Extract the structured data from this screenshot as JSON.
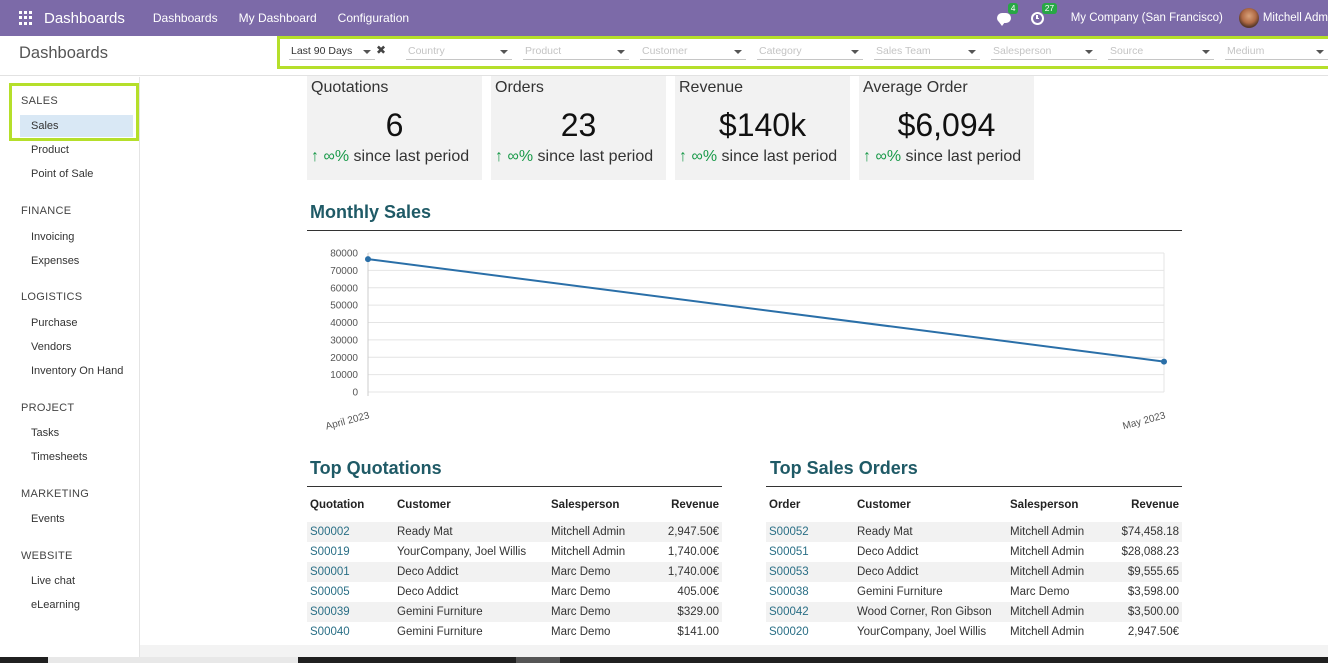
{
  "topbar": {
    "brand": "Dashboards",
    "menu": [
      "Dashboards",
      "My Dashboard",
      "Configuration"
    ],
    "messages_count": "4",
    "activities_count": "27",
    "company": "My Company (San Francisco)",
    "user": "Mitchell Adm"
  },
  "control_panel": {
    "title": "Dashboards",
    "filters": [
      {
        "value": "Last 90 Days",
        "placeholder": ""
      },
      {
        "value": "",
        "placeholder": "Country"
      },
      {
        "value": "",
        "placeholder": "Product"
      },
      {
        "value": "",
        "placeholder": "Customer"
      },
      {
        "value": "",
        "placeholder": "Category"
      },
      {
        "value": "",
        "placeholder": "Sales Team"
      },
      {
        "value": "",
        "placeholder": "Salesperson"
      },
      {
        "value": "",
        "placeholder": "Source"
      },
      {
        "value": "",
        "placeholder": "Medium"
      }
    ]
  },
  "sidebar": {
    "sections": [
      {
        "title": "SALES",
        "items": [
          "Sales",
          "Product",
          "Point of Sale"
        ]
      },
      {
        "title": "FINANCE",
        "items": [
          "Invoicing",
          "Expenses"
        ]
      },
      {
        "title": "LOGISTICS",
        "items": [
          "Purchase",
          "Vendors",
          "Inventory On Hand"
        ]
      },
      {
        "title": "PROJECT",
        "items": [
          "Tasks",
          "Timesheets"
        ]
      },
      {
        "title": "MARKETING",
        "items": [
          "Events"
        ]
      },
      {
        "title": "WEBSITE",
        "items": [
          "Live chat",
          "eLearning"
        ]
      }
    ]
  },
  "kpis": [
    {
      "label": "Quotations",
      "value": "6",
      "trend_pct": "∞%",
      "trend_text": " since last period"
    },
    {
      "label": "Orders",
      "value": "23",
      "trend_pct": "∞%",
      "trend_text": " since last period"
    },
    {
      "label": "Revenue",
      "value": "$140k",
      "trend_pct": "∞%",
      "trend_text": " since last period"
    },
    {
      "label": "Average Order",
      "value": "$6,094",
      "trend_pct": "∞%",
      "trend_text": " since last period"
    }
  ],
  "monthly_sales": {
    "title": "Monthly Sales"
  },
  "chart_data": {
    "type": "line",
    "title": "Monthly Sales",
    "x": [
      "April 2023",
      "May 2023"
    ],
    "series": [
      {
        "values": [
          76500,
          17500
        ],
        "color": "#2a6fa8"
      }
    ],
    "yticks": [
      0,
      10000,
      20000,
      30000,
      40000,
      50000,
      60000,
      70000,
      80000
    ],
    "ylim": [
      0,
      80000
    ],
    "grid": true
  },
  "top_quotations": {
    "title": "Top Quotations",
    "columns": [
      "Quotation",
      "Customer",
      "Salesperson",
      "Revenue"
    ],
    "rows": [
      [
        "S00002",
        "Ready Mat",
        "Mitchell Admin",
        "2,947.50€"
      ],
      [
        "S00019",
        "YourCompany, Joel Willis",
        "Mitchell Admin",
        "1,740.00€"
      ],
      [
        "S00001",
        "Deco Addict",
        "Marc Demo",
        "1,740.00€"
      ],
      [
        "S00005",
        "Deco Addict",
        "Marc Demo",
        "405.00€"
      ],
      [
        "S00039",
        "Gemini Furniture",
        "Marc Demo",
        "$329.00"
      ],
      [
        "S00040",
        "Gemini Furniture",
        "Marc Demo",
        "$141.00"
      ]
    ]
  },
  "top_sales_orders": {
    "title": "Top Sales Orders",
    "columns": [
      "Order",
      "Customer",
      "Salesperson",
      "Revenue"
    ],
    "rows": [
      [
        "S00052",
        "Ready Mat",
        "Mitchell Admin",
        "$74,458.18"
      ],
      [
        "S00051",
        "Deco Addict",
        "Mitchell Admin",
        "$28,088.23"
      ],
      [
        "S00053",
        "Deco Addict",
        "Mitchell Admin",
        "$9,555.65"
      ],
      [
        "S00038",
        "Gemini Furniture",
        "Marc Demo",
        "$3,598.00"
      ],
      [
        "S00042",
        "Wood Corner, Ron Gibson",
        "Mitchell Admin",
        "$3,500.00"
      ],
      [
        "S00020",
        "YourCompany, Joel Willis",
        "Mitchell Admin",
        "2,947.50€"
      ]
    ]
  }
}
